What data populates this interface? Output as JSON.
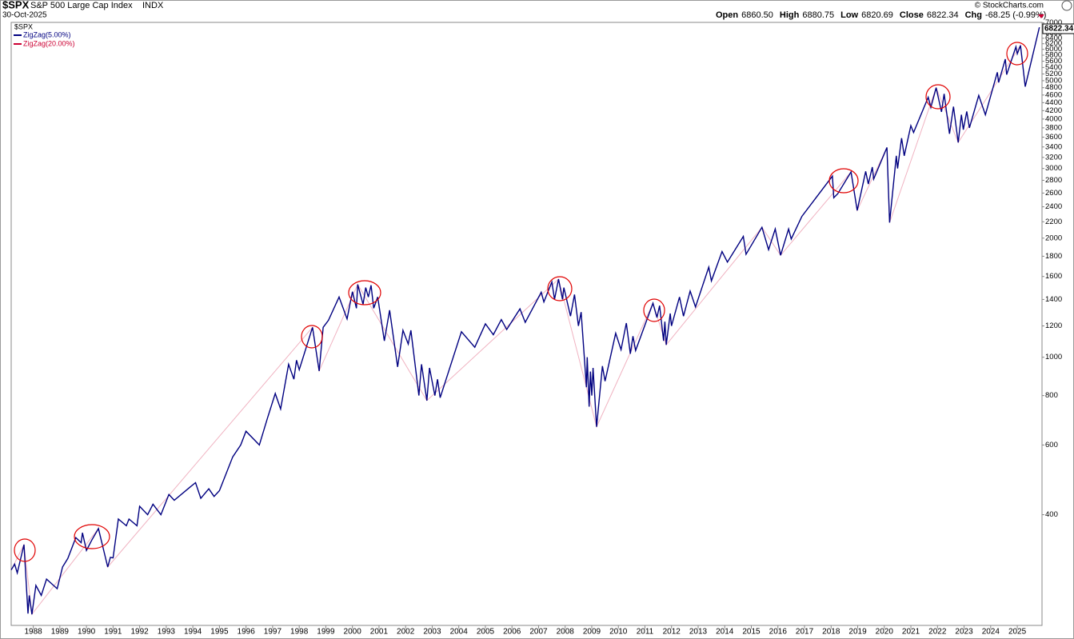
{
  "chart_data": {
    "type": "line",
    "symbol": "$SPX",
    "name": "S&P 500 Large Cap Index",
    "exchange": "INDX",
    "date": "30-Oct-2025",
    "credit": "© StockCharts.com",
    "ohlc": [
      {
        "label": "Open",
        "value": "6860.50"
      },
      {
        "label": "High",
        "value": "6880.75"
      },
      {
        "label": "Low",
        "value": "6820.69"
      },
      {
        "label": "Close",
        "value": "6822.34"
      },
      {
        "label": "Chg",
        "value": "-68.25 (-0.99%)"
      }
    ],
    "legend_title": "$SPX",
    "log_scale": true,
    "grid": false,
    "xlim": [
      1987.17,
      2025.93
    ],
    "ylim": [
      210,
      7020
    ],
    "xticks": [
      1988,
      1989,
      1990,
      1991,
      1992,
      1993,
      1994,
      1995,
      1996,
      1997,
      1998,
      1999,
      2000,
      2001,
      2002,
      2003,
      2004,
      2005,
      2006,
      2007,
      2008,
      2009,
      2010,
      2011,
      2012,
      2013,
      2014,
      2015,
      2016,
      2017,
      2018,
      2019,
      2020,
      2021,
      2022,
      2023,
      2024,
      2025
    ],
    "yticks": [
      400,
      600,
      800,
      1000,
      1200,
      1400,
      1600,
      1800,
      2000,
      2200,
      2400,
      2600,
      2800,
      3000,
      3200,
      3400,
      3600,
      3800,
      4000,
      4200,
      4400,
      4600,
      4800,
      5000,
      5200,
      5400,
      5600,
      5800,
      6000,
      6200,
      6400,
      6600,
      6800,
      7000
    ],
    "series": [
      {
        "name": "ZigZag(5.00%)",
        "color": "#000080",
        "x": [
          1987.17,
          1987.3,
          1987.4,
          1987.65,
          1987.8,
          1987.85,
          1987.95,
          1988.1,
          1988.3,
          1988.5,
          1988.9,
          1989.1,
          1989.3,
          1989.6,
          1989.8,
          1989.85,
          1990.0,
          1990.2,
          1990.45,
          1990.8,
          1990.9,
          1991.0,
          1991.2,
          1991.5,
          1991.6,
          1991.9,
          1992.0,
          1992.3,
          1992.5,
          1992.8,
          1993.1,
          1993.3,
          1993.9,
          1994.1,
          1994.3,
          1994.6,
          1994.8,
          1995.0,
          1995.5,
          1995.8,
          1996.0,
          1996.5,
          1996.8,
          1997.1,
          1997.3,
          1997.6,
          1997.8,
          1997.9,
          1998.0,
          1998.5,
          1998.75,
          1998.9,
          1999.1,
          1999.5,
          1999.8,
          2000.0,
          2000.15,
          2000.2,
          2000.4,
          2000.5,
          2000.6,
          2000.7,
          2000.8,
          2000.95,
          2001.2,
          2001.4,
          2001.7,
          2001.9,
          2002.1,
          2002.2,
          2002.5,
          2002.6,
          2002.8,
          2002.9,
          2003.1,
          2003.2,
          2003.3,
          2004.1,
          2004.6,
          2005.0,
          2005.3,
          2005.6,
          2005.8,
          2006.3,
          2006.5,
          2007.1,
          2007.2,
          2007.5,
          2007.6,
          2007.75,
          2007.9,
          2007.95,
          2008.2,
          2008.35,
          2008.5,
          2008.6,
          2008.8,
          2008.83,
          2008.9,
          2008.95,
          2009.0,
          2009.05,
          2009.18,
          2009.4,
          2009.5,
          2009.9,
          2010.1,
          2010.3,
          2010.45,
          2010.55,
          2010.65,
          2011.3,
          2011.45,
          2011.55,
          2011.7,
          2011.75,
          2011.8,
          2011.95,
          2012.0,
          2012.3,
          2012.45,
          2012.7,
          2012.9,
          2013.4,
          2013.5,
          2013.9,
          2014.1,
          2014.7,
          2014.8,
          2015.4,
          2015.65,
          2015.9,
          2016.1,
          2016.4,
          2016.5,
          2016.9,
          2018.05,
          2018.1,
          2018.25,
          2018.75,
          2018.98,
          2019.3,
          2019.4,
          2019.55,
          2019.6,
          2020.1,
          2020.2,
          2020.45,
          2020.5,
          2020.65,
          2020.75,
          2021.0,
          2021.1,
          2021.65,
          2021.75,
          2021.95,
          2022.15,
          2022.25,
          2022.45,
          2022.6,
          2022.78,
          2022.9,
          2022.97,
          2023.1,
          2023.2,
          2023.55,
          2023.8,
          2024.25,
          2024.3,
          2024.55,
          2024.6,
          2024.95,
          2025.0,
          2025.12,
          2025.3,
          2025.83
        ],
        "values": [
          290,
          300,
          285,
          336,
          225,
          250,
          224,
          265,
          250,
          275,
          260,
          295,
          310,
          350,
          340,
          360,
          325,
          345,
          369,
          295,
          312,
          311,
          390,
          375,
          390,
          375,
          420,
          400,
          425,
          400,
          450,
          435,
          470,
          482,
          440,
          465,
          445,
          460,
          560,
          600,
          650,
          600,
          700,
          810,
          740,
          960,
          880,
          983,
          930,
          1190,
          923,
          1190,
          1240,
          1420,
          1250,
          1465,
          1330,
          1527,
          1360,
          1500,
          1420,
          1520,
          1330,
          1420,
          1100,
          1315,
          945,
          1170,
          1080,
          1170,
          800,
          960,
          777,
          940,
          800,
          880,
          790,
          1160,
          1060,
          1215,
          1140,
          1245,
          1175,
          1325,
          1225,
          1460,
          1380,
          1550,
          1400,
          1576,
          1400,
          1500,
          1270,
          1440,
          1200,
          1300,
          840,
          1000,
          750,
          920,
          800,
          940,
          667,
          950,
          870,
          1150,
          1045,
          1220,
          1020,
          1130,
          1040,
          1370,
          1260,
          1350,
          1100,
          1230,
          1075,
          1290,
          1200,
          1420,
          1270,
          1470,
          1340,
          1690,
          1560,
          1850,
          1740,
          2020,
          1820,
          2130,
          1870,
          2110,
          1810,
          2110,
          1990,
          2270,
          2870,
          2530,
          2590,
          2940,
          2350,
          2950,
          2740,
          3025,
          2820,
          3390,
          2190,
          3230,
          3000,
          3580,
          3230,
          3850,
          3700,
          4540,
          4280,
          4800,
          4170,
          4630,
          3670,
          4300,
          3490,
          4100,
          3760,
          4180,
          3800,
          4590,
          4100,
          5250,
          4950,
          5670,
          5180,
          6090,
          5850,
          6140,
          4830,
          6822.34
        ]
      },
      {
        "name": "ZigZag(20.00%)",
        "color": "#cc0033",
        "x": [
          1987.17,
          1987.65,
          1987.95,
          1990.45,
          1990.8,
          1998.5,
          1998.75,
          2000.2,
          2002.8,
          2007.75,
          2009.18,
          2011.3,
          2011.8,
          2015.4,
          2016.1,
          2018.75,
          2018.98,
          2020.1,
          2020.2,
          2021.95,
          2022.78,
          2025.12,
          2025.3,
          2025.83
        ],
        "values": [
          290,
          336,
          224,
          369,
          295,
          1190,
          923,
          1527,
          777,
          1576,
          667,
          1370,
          1075,
          2130,
          1810,
          2940,
          2350,
          3390,
          2190,
          4800,
          3490,
          6140,
          4830,
          6822.34
        ]
      }
    ]
  }
}
